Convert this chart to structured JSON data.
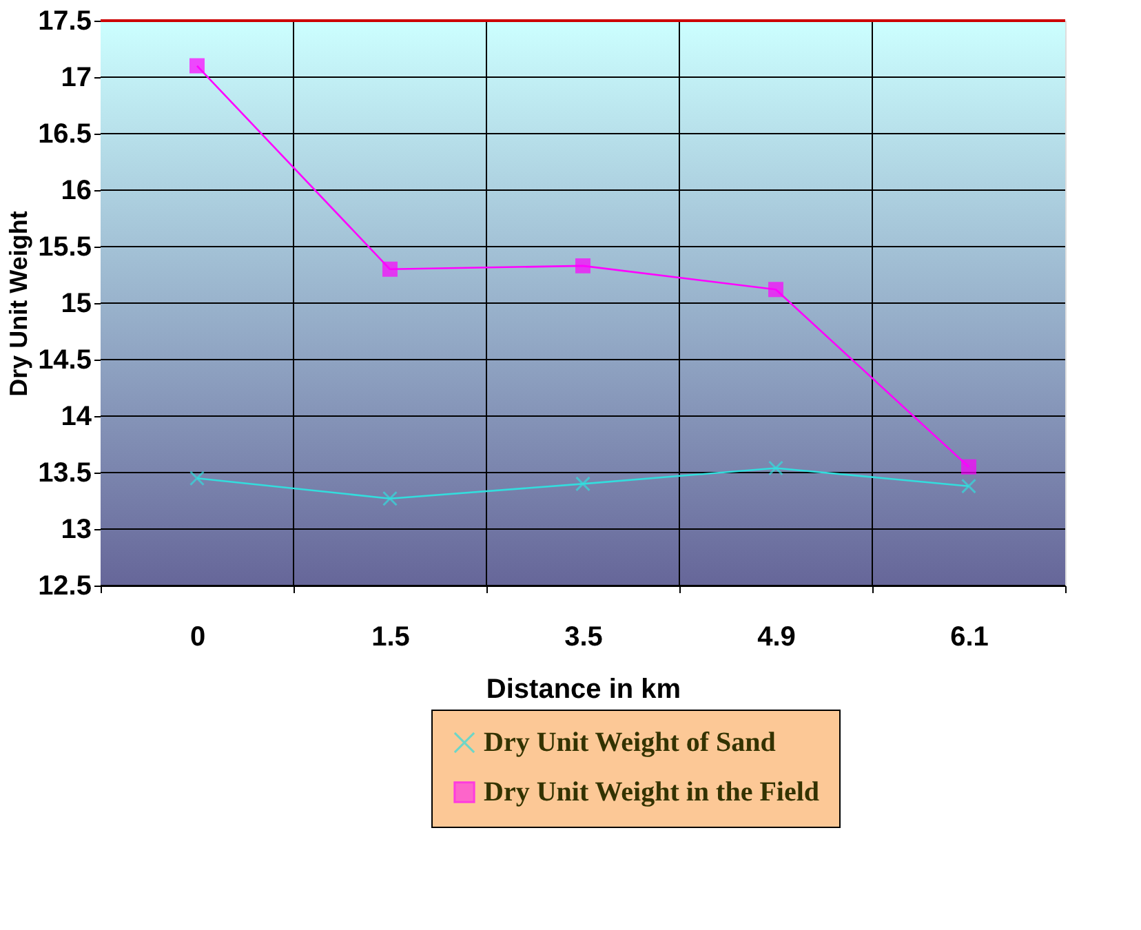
{
  "chart_data": {
    "type": "line",
    "xlabel": "Distance in km",
    "ylabel": "Dry Unit Weight",
    "categories": [
      "0",
      "1.5",
      "3.5",
      "4.9",
      "6.1"
    ],
    "series": [
      {
        "name": "Dry Unit Weight of Sand",
        "color": "#33dddd",
        "marker": "cross",
        "values": [
          13.45,
          13.27,
          13.4,
          13.54,
          13.38
        ]
      },
      {
        "name": "Dry Unit Weight in the Field",
        "color": "#ff00ff",
        "marker": "square",
        "values": [
          17.1,
          15.3,
          15.33,
          15.12,
          13.55
        ]
      }
    ],
    "ylim": [
      12.5,
      17.5
    ],
    "yticks": [
      12.5,
      13,
      13.5,
      14,
      14.5,
      15,
      15.5,
      16,
      16.5,
      17,
      17.5
    ],
    "grid": true,
    "legend": "bottom",
    "line_style": "solid"
  }
}
